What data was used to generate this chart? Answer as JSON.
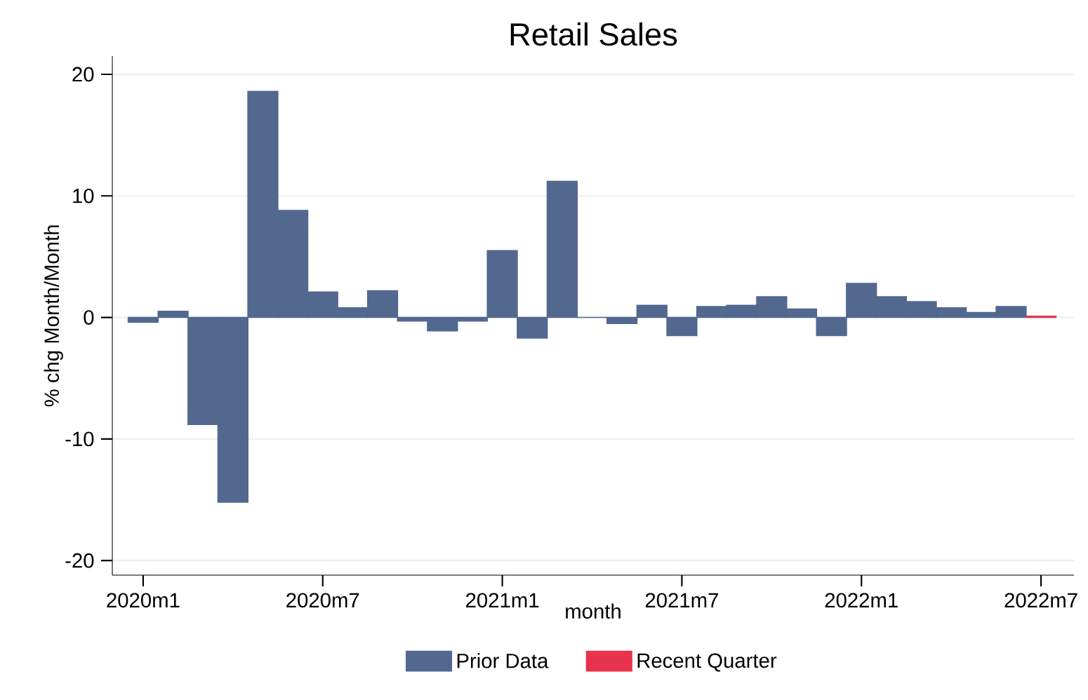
{
  "chart_data": {
    "type": "bar",
    "title": "Retail Sales",
    "xlabel": "month",
    "ylabel": "% chg Month/Month",
    "categories": [
      "2020m1",
      null,
      null,
      null,
      null,
      null,
      "2020m7",
      null,
      null,
      null,
      null,
      null,
      "2021m1",
      null,
      null,
      null,
      null,
      null,
      "2021m7",
      null,
      null,
      null,
      null,
      null,
      "2022m1",
      null,
      null,
      null,
      null,
      null,
      "2022m7"
    ],
    "series": [
      {
        "name": "Prior Data",
        "color": "#52688f",
        "values": [
          -0.4,
          0.5,
          -8.8,
          -15.2,
          18.6,
          8.8,
          2.1,
          0.8,
          2.2,
          -0.3,
          -1.1,
          -0.3,
          5.5,
          -1.7,
          11.2,
          0.0,
          -0.5,
          1.0,
          -1.5,
          0.9,
          1.0,
          1.7,
          0.7,
          -1.5,
          2.8,
          1.7,
          1.3,
          0.8,
          0.4,
          0.9,
          null
        ]
      },
      {
        "name": "Recent Quarter",
        "color": "#e8334f",
        "values": [
          null,
          null,
          null,
          null,
          null,
          null,
          null,
          null,
          null,
          null,
          null,
          null,
          null,
          null,
          null,
          null,
          null,
          null,
          null,
          null,
          null,
          null,
          null,
          null,
          null,
          null,
          null,
          null,
          null,
          null,
          0.1
        ]
      }
    ],
    "ylim": [
      -21.2,
      21.5
    ],
    "yticks": [
      -20,
      -10,
      0,
      10,
      20
    ],
    "grid": "y",
    "legend": "bottom"
  }
}
